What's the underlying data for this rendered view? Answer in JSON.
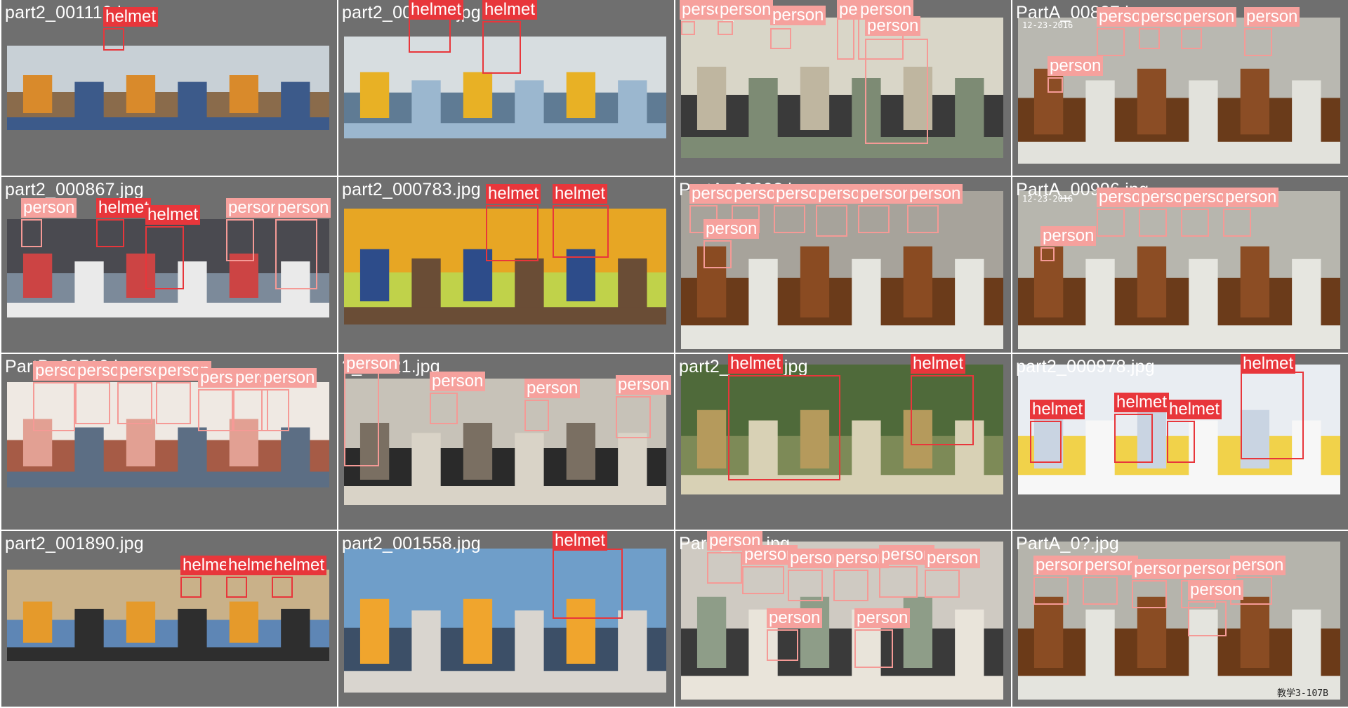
{
  "colors": {
    "helmet": "#e8363b",
    "person": "#f6a19d",
    "tile_bg": "#6f6f6f"
  },
  "tiles": [
    {
      "filename": "part2_001119.jpg",
      "labels": [
        "helmet"
      ]
    },
    {
      "filename": "part2_001967.jpg",
      "labels": [
        "helmet",
        "helmet"
      ]
    },
    {
      "filename": "PartA_00?3.jpg",
      "labels": [
        "person",
        "person",
        "person",
        "person",
        "person",
        "person"
      ]
    },
    {
      "filename": "PartA_00837.jpg",
      "labels": [
        "person",
        "person",
        "person",
        "person",
        "person"
      ],
      "datestamp": "12-23-2016"
    },
    {
      "filename": "part2_000867.jpg",
      "labels": [
        "person",
        "helmet",
        "helmet",
        "person",
        "person"
      ]
    },
    {
      "filename": "part2_000783.jpg",
      "labels": [
        "helmet",
        "helmet"
      ]
    },
    {
      "filename": "PartA_0099?.jpg",
      "labels": [
        "person",
        "person",
        "person",
        "person",
        "person",
        "person",
        "person"
      ]
    },
    {
      "filename": "PartA_00996.jpg",
      "labels": [
        "person",
        "person",
        "person",
        "person",
        "person"
      ],
      "datestamp": "12-23-2016"
    },
    {
      "filename": "PartB_00710.jpg",
      "labels": [
        "person",
        "person",
        "person",
        "person",
        "person",
        "person",
        "person"
      ]
    },
    {
      "filename": "?_00521.jpg",
      "labels": [
        "person",
        "person",
        "person",
        "person"
      ]
    },
    {
      "filename": "part2_00??6.jpg",
      "labels": [
        "helmet",
        "helmet"
      ]
    },
    {
      "filename": "part2_000978.jpg",
      "labels": [
        "helmet",
        "helmet",
        "helmet",
        "helmet"
      ]
    },
    {
      "filename": "part2_001890.jpg",
      "labels": [
        "helmet",
        "helmet",
        "helmet"
      ]
    },
    {
      "filename": "part2_001558.jpg",
      "labels": [
        "helmet"
      ]
    },
    {
      "filename": "Part?_?96.jpg",
      "labels": [
        "person",
        "person",
        "person",
        "person",
        "person",
        "person",
        "person",
        "person"
      ]
    },
    {
      "filename": "PartA_0?.jpg",
      "labels": [
        "person",
        "person",
        "person",
        "person",
        "person",
        "person"
      ],
      "watermark": "教学3-107B"
    }
  ],
  "watermark_classroom": "教学3-107B"
}
